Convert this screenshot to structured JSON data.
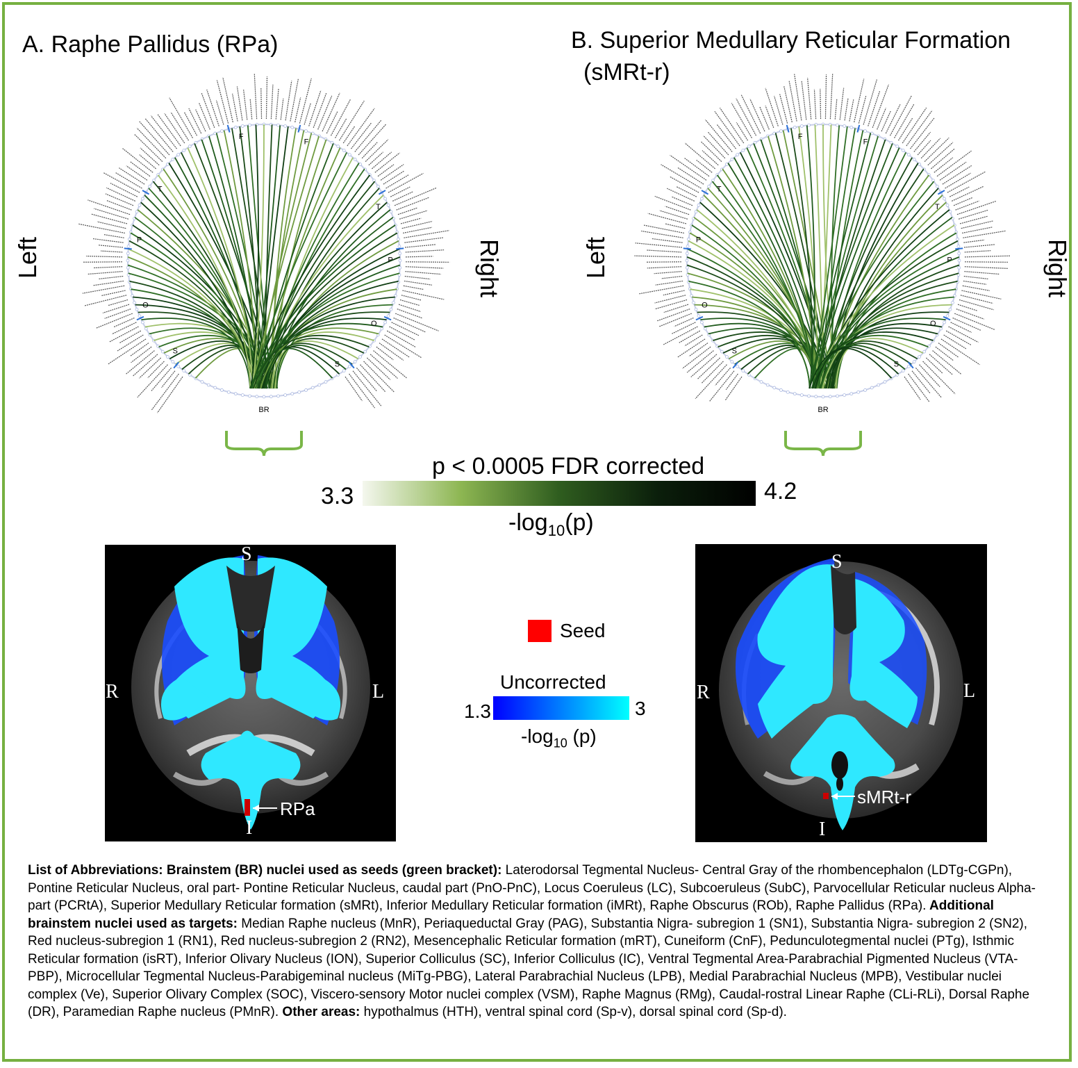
{
  "panel_a": {
    "title": "A. Raphe Pallidus (RPa)",
    "left_label": "Left",
    "right_label": "Right",
    "ring_markers": [
      "F",
      "F",
      "T",
      "T",
      "P",
      "P",
      "O",
      "O",
      "S",
      "S"
    ],
    "bottom_label": "BR",
    "seed_annotation": "RPa"
  },
  "panel_b": {
    "title_line1": "B. Superior Medullary Reticular Formation",
    "title_line2": "(sMRt-r)",
    "left_label": "Left",
    "right_label": "Right",
    "ring_markers": [
      "F",
      "F",
      "T",
      "T",
      "P",
      "P",
      "O",
      "O",
      "S",
      "S"
    ],
    "bottom_label": "BR",
    "seed_annotation": "sMRt-r"
  },
  "fdr_colorbar": {
    "title": "p < 0.0005 FDR corrected",
    "min": "3.3",
    "max": "4.2",
    "axis_label_prefix": "-log",
    "axis_label_sub": "10",
    "axis_label_suffix": "(p)",
    "colors": [
      "#f4f7ee",
      "#8db652",
      "#2f5d1f",
      "#0b1f0b",
      "#000000"
    ]
  },
  "brain_views": {
    "orientation": {
      "top": "S",
      "bottom": "I",
      "left": "R",
      "right": "L"
    }
  },
  "seed_legend": {
    "label": "Seed",
    "color": "#ff0000"
  },
  "uncorrected_colorbar": {
    "title": "Uncorrected",
    "min": "1.3",
    "max": "3",
    "axis_label_prefix": "-log",
    "axis_label_sub": "10",
    "axis_label_suffix": " (p)",
    "colors": [
      "#0000ff",
      "#00ffff"
    ]
  },
  "abbreviations": {
    "h1": "List of Abbreviations: Brainstem (BR) nuclei  used as seeds (green bracket):",
    "t1": " Laterodorsal Tegmental Nucleus- Central Gray of the rhombencephalon (LDTg-CGPn), Pontine Reticular Nucleus, oral part- Pontine Reticular Nucleus, caudal part (PnO-PnC), Locus Coeruleus (LC), Subcoeruleus (SubC), Parvocellular Reticular nucleus Alpha-part (PCRtA), Superior Medullary Reticular formation (sMRt), Inferior Medullary Reticular formation (iMRt), Raphe Obscurus (ROb), Raphe Pallidus (RPa).",
    "h2": " Additional brainstem nuclei used as targets:",
    "t2": " Median Raphe nucleus (MnR), Periaqueductal Gray (PAG), Substantia Nigra- subregion 1 (SN1), Substantia Nigra- subregion 2 (SN2), Red nucleus-subregion 1 (RN1), Red nucleus-subregion 2 (RN2), Mesencephalic Reticular formation (mRT), Cuneiform (CnF), Pedunculotegmental nuclei (PTg), Isthmic Reticular formation (isRT), Inferior Olivary Nucleus (ION), Superior Colliculus (SC), Inferior Colliculus (IC), Ventral Tegmental Area-Parabrachial Pigmented Nucleus (VTA-PBP), Microcellular Tegmental Nucleus-Parabigeminal nucleus (MiTg-PBG), Lateral Parabrachial Nucleus (LPB), Medial Parabrachial Nucleus (MPB), Vestibular nuclei complex (Ve), Superior Olivary Complex (SOC), Viscero-sensory Motor nuclei complex (VSM), Raphe Magnus (RMg), Caudal-rostral Linear Raphe (CLi-RLi), Dorsal Raphe (DR), Paramedian Raphe nucleus (PMnR).",
    "h3": " Other areas:",
    "t3": " hypothalmus (HTH), ventral spinal cord (Sp-v), dorsal spinal cord (Sp-d)."
  }
}
